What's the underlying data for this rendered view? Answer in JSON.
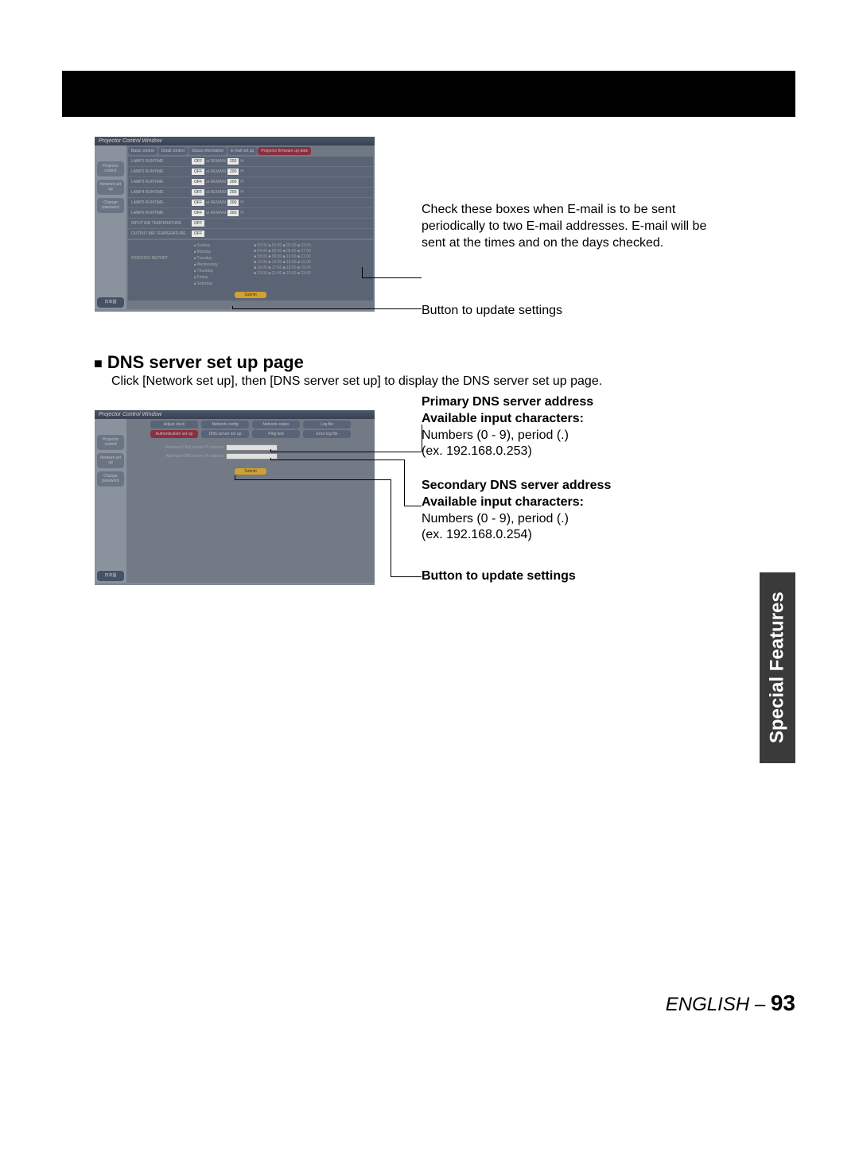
{
  "blackBar": {},
  "screenshot1": {
    "windowTitle": "Projector Control Window",
    "sidebar": {
      "items": [
        {
          "label": "Projector\ncontrol"
        },
        {
          "label": "Network\nset up"
        },
        {
          "label": "Change\npassword"
        },
        {
          "label": "日本語"
        }
      ]
    },
    "tabs": [
      {
        "label": "Basic control"
      },
      {
        "label": "Detail control"
      },
      {
        "label": "Status information"
      },
      {
        "label": "E-mail set up"
      },
      {
        "label": "Projector firmware up-date"
      }
    ],
    "lampRows": [
      {
        "label": "LAMP1 RUNTIME",
        "off": "OFF",
        "at": "at REMAIN",
        "num": "200",
        "h": "H"
      },
      {
        "label": "LAMP2 RUNTIME",
        "off": "OFF",
        "at": "at REMAIN",
        "num": "200",
        "h": "H"
      },
      {
        "label": "LAMP3 RUNTIME",
        "off": "OFF",
        "at": "at REMAIN",
        "num": "200",
        "h": "H"
      },
      {
        "label": "LAMP4 RUNTIME",
        "off": "OFF",
        "at": "at REMAIN",
        "num": "200",
        "h": "H"
      },
      {
        "label": "LAMP5 RUNTIME",
        "off": "OFF",
        "at": "at REMAIN",
        "num": "200",
        "h": "H"
      },
      {
        "label": "LAMP6 RUNTIME",
        "off": "OFF",
        "at": "at REMAIN",
        "num": "200",
        "h": "H"
      },
      {
        "label": "INPUT AIR TEMPERATURE",
        "off": "OFF"
      },
      {
        "label": "OUTPUT AIR TEMPERATURE",
        "off": "OFF"
      }
    ],
    "periodic": {
      "label": "PERIODIC REPORT",
      "days": [
        "Sunday",
        "Monday",
        "Tuesday",
        "Wednesday",
        "Thursday",
        "Friday",
        "Saturday"
      ],
      "timeRows": [
        "■ 00:00  ■ 01:00  ■ 02:00  ■ 03:00",
        "■ 04:00  ■ 05:00  ■ 06:00  ■ 07:00",
        "■ 08:00  ■ 09:00  ■ 10:00  ■ 11:00",
        "■ 12:00  ■ 13:00  ■ 14:00  ■ 15:00",
        "■ 16:00  ■ 17:00  ■ 18:00  ■ 19:00",
        "■ 20:00  ■ 21:00  ■ 22:00  ■ 23:00"
      ]
    },
    "submit": "Submit"
  },
  "callout1": "Check these boxes when E-mail is to be sent periodically to two E-mail addresses. E-mail will be sent at the times and on the days checked.",
  "callout2": "Button to update settings",
  "section": {
    "heading": "DNS server set up page",
    "desc": "Click [Network set up], then [DNS server set up] to display the DNS server set up page."
  },
  "screenshot2": {
    "windowTitle": "Projector Control Window",
    "sidebar": {
      "items": [
        {
          "label": "Projector\ncontrol"
        },
        {
          "label": "Network\nset up"
        },
        {
          "label": "Change\npassword"
        },
        {
          "label": "日本語"
        }
      ]
    },
    "tabs1": [
      {
        "label": "Adjust clock"
      },
      {
        "label": "Network config"
      },
      {
        "label": "Network status"
      },
      {
        "label": "Log file"
      }
    ],
    "tabs2": [
      {
        "label": "Authentication set up"
      },
      {
        "label": "DNS server set up"
      },
      {
        "label": "Ping test"
      },
      {
        "label": "Error log file"
      }
    ],
    "form": {
      "row1": "Preferred DNS server IP address",
      "row2": "Alternate DNS server IP address"
    },
    "submit": "Submit"
  },
  "dnsCallout1": {
    "bold1": "Primary DNS server address",
    "bold2": "Available input characters:",
    "line3": "Numbers (0 - 9), period (.)",
    "line4": "(ex. 192.168.0.253)"
  },
  "dnsCallout2": {
    "bold1": "Secondary DNS server address",
    "bold2": "Available input characters:",
    "line3": "Numbers (0 - 9), period (.)",
    "line4": "(ex. 192.168.0.254)"
  },
  "dnsCallout3": "Button to update settings",
  "sideTab": "Special Features",
  "footer": {
    "lang": "ENGLISH – ",
    "page": "93"
  },
  "colors": {
    "blackBar": "#000000",
    "screenshotBg": "#808894",
    "sidebarBg": "#8a929e",
    "sideBtnBg": "#6a7484",
    "tabBg": "#5a6478",
    "tabActive": "#8a3040",
    "submitBtn": "#d0a030",
    "sideTabBg": "#3a3a3a"
  }
}
